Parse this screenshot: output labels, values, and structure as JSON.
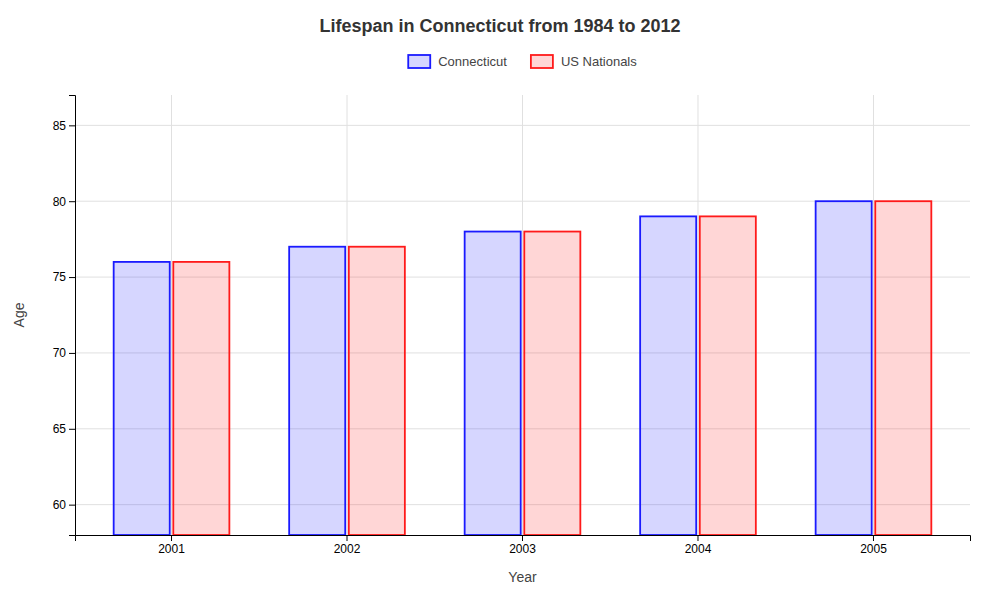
{
  "chart_data": {
    "type": "bar",
    "title": "Lifespan in Connecticut from 1984 to 2012",
    "x_label": "Year",
    "y_label": "Age",
    "categories": [
      "2001",
      "2002",
      "2003",
      "2004",
      "2005"
    ],
    "series": [
      {
        "name": "Connecticut",
        "color": "#1a1aff",
        "values": [
          76,
          77,
          78,
          79,
          80
        ]
      },
      {
        "name": "US Nationals",
        "color": "#ff1a1a",
        "values": [
          76,
          77,
          78,
          79,
          80
        ]
      }
    ],
    "ylim": [
      58,
      87
    ],
    "yticks": [
      60,
      65,
      70,
      75,
      80,
      85
    ],
    "grid": true,
    "legend": "top"
  }
}
